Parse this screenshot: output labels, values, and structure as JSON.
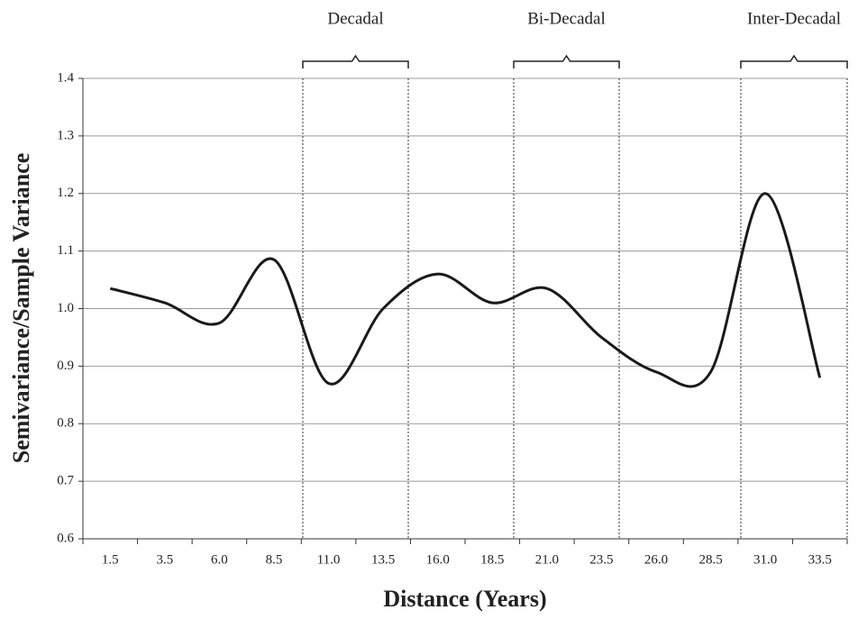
{
  "chart_data": {
    "type": "line",
    "x_label": "Distance (Years)",
    "y_label": "Semivariance/Sample Variance",
    "categories": [
      "1.5",
      "3.5",
      "6.0",
      "8.5",
      "11.0",
      "13.5",
      "16.0",
      "18.5",
      "21.0",
      "23.5",
      "26.0",
      "28.5",
      "31.0",
      "33.5"
    ],
    "values": [
      1.035,
      1.01,
      0.975,
      1.085,
      0.87,
      1.0,
      1.06,
      1.01,
      1.035,
      0.95,
      0.89,
      0.89,
      1.2,
      0.88
    ],
    "color": "#1a1a1a",
    "ylim": [
      0.6,
      1.4
    ],
    "yticks": [
      0.6,
      0.7,
      0.8,
      0.9,
      {
        "value": 1,
        "label": "1.0"
      },
      1.1,
      1.2,
      1.3,
      1.4
    ],
    "grid": true,
    "annotations": [
      "Decadal",
      "Bi-Decadal",
      "Inter-Decadal"
    ]
  }
}
